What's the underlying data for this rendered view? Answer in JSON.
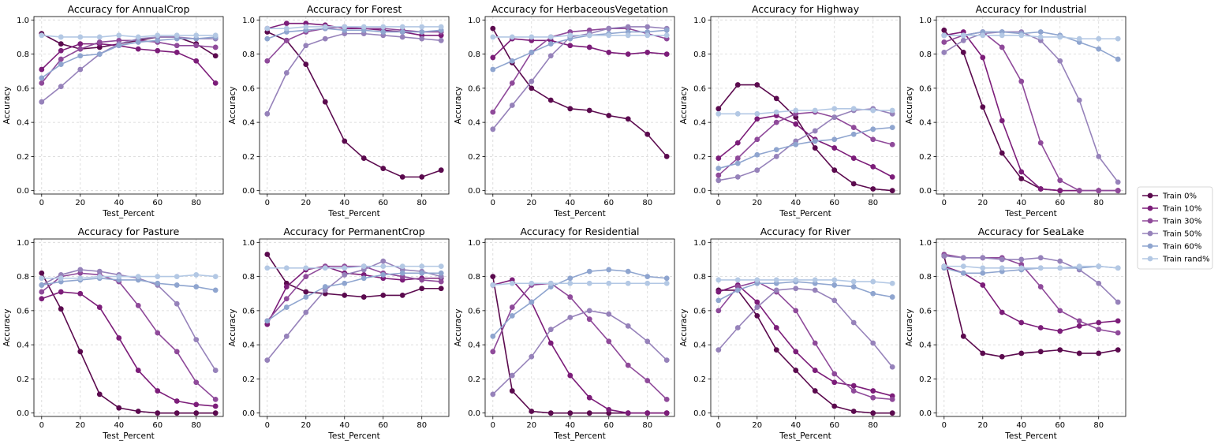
{
  "chart_data": {
    "type": "line",
    "layout": "2x5 small multiples",
    "x": [
      0,
      10,
      20,
      30,
      40,
      50,
      60,
      70,
      80,
      90
    ],
    "xlabel": "Test_Percent",
    "ylabel": "Accuracy",
    "xticks": [
      0,
      20,
      40,
      60,
      80
    ],
    "yticks": [
      0.0,
      0.2,
      0.4,
      0.6,
      0.8,
      1.0
    ],
    "xlim": [
      -4,
      94
    ],
    "ylim": [
      -0.02,
      1.02
    ],
    "grid": true,
    "legend_position": "right-center",
    "series_legend": [
      {
        "name": "Train 0%",
        "color": "#5b0a4e"
      },
      {
        "name": "Train 10%",
        "color": "#7c1d79"
      },
      {
        "name": "Train 30%",
        "color": "#8f4a9a"
      },
      {
        "name": "Train 50%",
        "color": "#9682ba"
      },
      {
        "name": "Train 60%",
        "color": "#8fa5cf"
      },
      {
        "name": "Train rand%",
        "color": "#b3c8e4"
      }
    ],
    "panels": [
      {
        "title": "Accuracy for AnnualCrop",
        "series": [
          {
            "name": "Train 0%",
            "values": [
              0.92,
              0.86,
              0.83,
              0.84,
              0.86,
              0.88,
              0.9,
              0.9,
              0.86,
              0.79
            ]
          },
          {
            "name": "Train 10%",
            "values": [
              0.71,
              0.82,
              0.86,
              0.86,
              0.85,
              0.83,
              0.82,
              0.81,
              0.76,
              0.63
            ]
          },
          {
            "name": "Train 30%",
            "values": [
              0.63,
              0.77,
              0.83,
              0.87,
              0.88,
              0.88,
              0.87,
              0.85,
              0.85,
              0.84
            ]
          },
          {
            "name": "Train 50%",
            "values": [
              0.52,
              0.61,
              0.71,
              0.8,
              0.86,
              0.89,
              0.9,
              0.9,
              0.89,
              0.89
            ]
          },
          {
            "name": "Train 60%",
            "values": [
              0.66,
              0.74,
              0.79,
              0.8,
              0.85,
              0.87,
              0.88,
              0.89,
              0.89,
              0.9
            ]
          },
          {
            "name": "Train rand%",
            "values": [
              0.91,
              0.9,
              0.9,
              0.9,
              0.91,
              0.9,
              0.91,
              0.91,
              0.91,
              0.91
            ]
          }
        ]
      },
      {
        "title": "Accuracy for Forest",
        "series": [
          {
            "name": "Train 0%",
            "values": [
              0.93,
              0.88,
              0.74,
              0.52,
              0.29,
              0.19,
              0.13,
              0.08,
              0.08,
              0.12
            ]
          },
          {
            "name": "Train 10%",
            "values": [
              0.95,
              0.98,
              0.98,
              0.97,
              0.95,
              0.95,
              0.94,
              0.93,
              0.91,
              0.91
            ]
          },
          {
            "name": "Train 30%",
            "values": [
              0.76,
              0.88,
              0.93,
              0.95,
              0.96,
              0.95,
              0.95,
              0.94,
              0.93,
              0.93
            ]
          },
          {
            "name": "Train 50%",
            "values": [
              0.45,
              0.69,
              0.85,
              0.89,
              0.92,
              0.92,
              0.91,
              0.9,
              0.89,
              0.88
            ]
          },
          {
            "name": "Train 60%",
            "values": [
              0.89,
              0.93,
              0.94,
              0.95,
              0.94,
              0.94,
              0.93,
              0.93,
              0.93,
              0.94
            ]
          },
          {
            "name": "Train rand%",
            "values": [
              0.95,
              0.95,
              0.96,
              0.96,
              0.96,
              0.96,
              0.96,
              0.96,
              0.96,
              0.96
            ]
          }
        ]
      },
      {
        "title": "Accuracy for HerbaceousVegetation",
        "series": [
          {
            "name": "Train 0%",
            "values": [
              0.95,
              0.75,
              0.6,
              0.53,
              0.48,
              0.47,
              0.44,
              0.42,
              0.33,
              0.2
            ]
          },
          {
            "name": "Train 10%",
            "values": [
              0.78,
              0.89,
              0.88,
              0.88,
              0.85,
              0.84,
              0.81,
              0.8,
              0.81,
              0.8
            ]
          },
          {
            "name": "Train 30%",
            "values": [
              0.46,
              0.63,
              0.81,
              0.9,
              0.93,
              0.94,
              0.95,
              0.95,
              0.92,
              0.89
            ]
          },
          {
            "name": "Train 50%",
            "values": [
              0.36,
              0.5,
              0.64,
              0.79,
              0.9,
              0.92,
              0.95,
              0.96,
              0.96,
              0.95
            ]
          },
          {
            "name": "Train 60%",
            "values": [
              0.71,
              0.76,
              0.81,
              0.86,
              0.89,
              0.91,
              0.92,
              0.93,
              0.93,
              0.94
            ]
          },
          {
            "name": "Train rand%",
            "values": [
              0.9,
              0.9,
              0.9,
              0.9,
              0.91,
              0.91,
              0.91,
              0.91,
              0.91,
              0.91
            ]
          }
        ]
      },
      {
        "title": "Accuracy for Highway",
        "series": [
          {
            "name": "Train 0%",
            "values": [
              0.48,
              0.62,
              0.62,
              0.54,
              0.43,
              0.25,
              0.12,
              0.04,
              0.01,
              0.0
            ]
          },
          {
            "name": "Train 10%",
            "values": [
              0.19,
              0.28,
              0.42,
              0.44,
              0.39,
              0.3,
              0.25,
              0.19,
              0.14,
              0.08
            ]
          },
          {
            "name": "Train 30%",
            "values": [
              0.09,
              0.19,
              0.3,
              0.4,
              0.45,
              0.46,
              0.43,
              0.37,
              0.3,
              0.27
            ]
          },
          {
            "name": "Train 50%",
            "values": [
              0.06,
              0.08,
              0.12,
              0.2,
              0.29,
              0.35,
              0.43,
              0.47,
              0.48,
              0.45
            ]
          },
          {
            "name": "Train 60%",
            "values": [
              0.13,
              0.16,
              0.21,
              0.24,
              0.27,
              0.29,
              0.3,
              0.33,
              0.36,
              0.37
            ]
          },
          {
            "name": "Train rand%",
            "values": [
              0.45,
              0.45,
              0.45,
              0.46,
              0.47,
              0.47,
              0.48,
              0.48,
              0.47,
              0.47
            ]
          }
        ]
      },
      {
        "title": "Accuracy for Industrial",
        "series": [
          {
            "name": "Train 0%",
            "values": [
              0.94,
              0.81,
              0.49,
              0.22,
              0.07,
              0.01,
              0.0,
              0.0,
              0.0,
              0.0
            ]
          },
          {
            "name": "Train 10%",
            "values": [
              0.91,
              0.93,
              0.78,
              0.41,
              0.11,
              0.01,
              0.0,
              0.0,
              0.0,
              0.0
            ]
          },
          {
            "name": "Train 30%",
            "values": [
              0.87,
              0.91,
              0.93,
              0.84,
              0.64,
              0.28,
              0.06,
              0.0,
              0.0,
              0.0
            ]
          },
          {
            "name": "Train 50%",
            "values": [
              0.81,
              0.88,
              0.92,
              0.93,
              0.93,
              0.88,
              0.76,
              0.53,
              0.2,
              0.05
            ]
          },
          {
            "name": "Train 60%",
            "values": [
              0.91,
              0.91,
              0.93,
              0.93,
              0.92,
              0.93,
              0.91,
              0.87,
              0.83,
              0.77
            ]
          },
          {
            "name": "Train rand%",
            "values": [
              0.91,
              0.91,
              0.91,
              0.91,
              0.91,
              0.9,
              0.9,
              0.89,
              0.89,
              0.89
            ]
          }
        ]
      },
      {
        "title": "Accuracy for Pasture",
        "series": [
          {
            "name": "Train 0%",
            "values": [
              0.82,
              0.61,
              0.36,
              0.11,
              0.03,
              0.01,
              0.0,
              0.0,
              0.0,
              0.0
            ]
          },
          {
            "name": "Train 10%",
            "values": [
              0.67,
              0.71,
              0.7,
              0.62,
              0.44,
              0.25,
              0.13,
              0.07,
              0.05,
              0.04
            ]
          },
          {
            "name": "Train 30%",
            "values": [
              0.71,
              0.8,
              0.82,
              0.81,
              0.77,
              0.63,
              0.47,
              0.36,
              0.18,
              0.08
            ]
          },
          {
            "name": "Train 50%",
            "values": [
              0.75,
              0.81,
              0.84,
              0.83,
              0.81,
              0.79,
              0.75,
              0.64,
              0.43,
              0.25
            ]
          },
          {
            "name": "Train 60%",
            "values": [
              0.75,
              0.77,
              0.78,
              0.79,
              0.78,
              0.78,
              0.76,
              0.75,
              0.74,
              0.72
            ]
          },
          {
            "name": "Train rand%",
            "values": [
              0.79,
              0.79,
              0.79,
              0.8,
              0.8,
              0.8,
              0.8,
              0.8,
              0.81,
              0.8
            ]
          }
        ]
      },
      {
        "title": "Accuracy for PermanentCrop",
        "series": [
          {
            "name": "Train 0%",
            "values": [
              0.93,
              0.76,
              0.71,
              0.7,
              0.69,
              0.68,
              0.69,
              0.69,
              0.73,
              0.73
            ]
          },
          {
            "name": "Train 10%",
            "values": [
              0.52,
              0.74,
              0.84,
              0.86,
              0.82,
              0.81,
              0.79,
              0.78,
              0.79,
              0.79
            ]
          },
          {
            "name": "Train 30%",
            "values": [
              0.54,
              0.67,
              0.8,
              0.86,
              0.86,
              0.86,
              0.82,
              0.8,
              0.78,
              0.77
            ]
          },
          {
            "name": "Train 50%",
            "values": [
              0.31,
              0.45,
              0.59,
              0.72,
              0.81,
              0.84,
              0.89,
              0.84,
              0.83,
              0.8
            ]
          },
          {
            "name": "Train 60%",
            "values": [
              0.54,
              0.62,
              0.68,
              0.74,
              0.76,
              0.79,
              0.81,
              0.82,
              0.82,
              0.82
            ]
          },
          {
            "name": "Train rand%",
            "values": [
              0.85,
              0.85,
              0.85,
              0.85,
              0.85,
              0.86,
              0.86,
              0.86,
              0.86,
              0.86
            ]
          }
        ]
      },
      {
        "title": "Accuracy for Residential",
        "series": [
          {
            "name": "Train 0%",
            "values": [
              0.8,
              0.13,
              0.01,
              0.0,
              0.0,
              0.0,
              0.0,
              0.0,
              0.0,
              0.0
            ]
          },
          {
            "name": "Train 10%",
            "values": [
              0.75,
              0.78,
              0.65,
              0.41,
              0.22,
              0.09,
              0.02,
              0.0,
              0.0,
              0.0
            ]
          },
          {
            "name": "Train 30%",
            "values": [
              0.36,
              0.62,
              0.75,
              0.76,
              0.68,
              0.55,
              0.42,
              0.28,
              0.19,
              0.08
            ]
          },
          {
            "name": "Train 50%",
            "values": [
              0.11,
              0.22,
              0.33,
              0.49,
              0.56,
              0.6,
              0.58,
              0.51,
              0.42,
              0.31
            ]
          },
          {
            "name": "Train 60%",
            "values": [
              0.45,
              0.57,
              0.65,
              0.74,
              0.79,
              0.83,
              0.84,
              0.83,
              0.8,
              0.79
            ]
          },
          {
            "name": "Train rand%",
            "values": [
              0.75,
              0.76,
              0.76,
              0.76,
              0.76,
              0.76,
              0.76,
              0.76,
              0.76,
              0.76
            ]
          }
        ]
      },
      {
        "title": "Accuracy for River",
        "series": [
          {
            "name": "Train 0%",
            "values": [
              0.72,
              0.72,
              0.57,
              0.37,
              0.25,
              0.13,
              0.04,
              0.01,
              0.0,
              0.0
            ]
          },
          {
            "name": "Train 10%",
            "values": [
              0.71,
              0.75,
              0.65,
              0.5,
              0.36,
              0.25,
              0.18,
              0.16,
              0.13,
              0.1
            ]
          },
          {
            "name": "Train 30%",
            "values": [
              0.6,
              0.74,
              0.77,
              0.71,
              0.6,
              0.41,
              0.23,
              0.13,
              0.09,
              0.08
            ]
          },
          {
            "name": "Train 50%",
            "values": [
              0.37,
              0.5,
              0.62,
              0.72,
              0.73,
              0.72,
              0.66,
              0.53,
              0.41,
              0.27
            ]
          },
          {
            "name": "Train 60%",
            "values": [
              0.66,
              0.72,
              0.76,
              0.76,
              0.77,
              0.76,
              0.75,
              0.74,
              0.7,
              0.68
            ]
          },
          {
            "name": "Train rand%",
            "values": [
              0.78,
              0.78,
              0.78,
              0.78,
              0.78,
              0.78,
              0.78,
              0.77,
              0.77,
              0.76
            ]
          }
        ]
      },
      {
        "title": "Accuracy for SeaLake",
        "series": [
          {
            "name": "Train 0%",
            "values": [
              0.92,
              0.45,
              0.35,
              0.33,
              0.35,
              0.36,
              0.37,
              0.35,
              0.35,
              0.37
            ]
          },
          {
            "name": "Train 10%",
            "values": [
              0.86,
              0.82,
              0.75,
              0.59,
              0.53,
              0.5,
              0.48,
              0.51,
              0.53,
              0.54
            ]
          },
          {
            "name": "Train 30%",
            "values": [
              0.93,
              0.91,
              0.91,
              0.91,
              0.87,
              0.74,
              0.6,
              0.54,
              0.49,
              0.47
            ]
          },
          {
            "name": "Train 50%",
            "values": [
              0.92,
              0.91,
              0.91,
              0.9,
              0.9,
              0.91,
              0.89,
              0.84,
              0.76,
              0.65
            ]
          },
          {
            "name": "Train 60%",
            "values": [
              0.85,
              0.82,
              0.82,
              0.83,
              0.84,
              0.85,
              0.85,
              0.85,
              0.86,
              0.85
            ]
          },
          {
            "name": "Train rand%",
            "values": [
              0.86,
              0.86,
              0.85,
              0.85,
              0.85,
              0.85,
              0.85,
              0.86,
              0.86,
              0.85
            ]
          }
        ]
      }
    ]
  }
}
